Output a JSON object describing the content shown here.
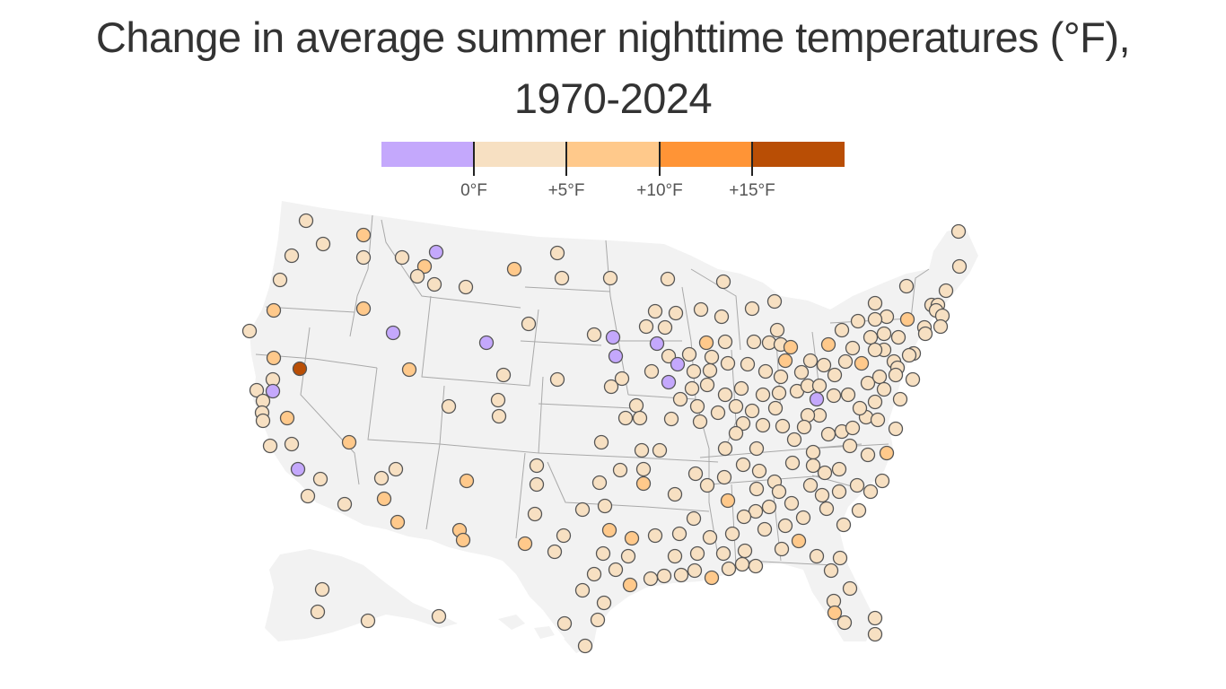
{
  "title": "Change in average summer nighttime temperatures (°F), 1970‑2024",
  "legend": {
    "type": "threshold",
    "colors": [
      "#c4a8fc",
      "#f7e0c2",
      "#ffc98b",
      "#ff9436",
      "#b94e05"
    ],
    "thresholds": [
      0,
      5,
      10,
      15
    ],
    "labels": [
      "0°F",
      "+5°F",
      "+10°F",
      "+15°F"
    ]
  },
  "map": {
    "region": "United States (contiguous, with inset Alaska)",
    "land_color": "#f2f2f2",
    "border_color": "#a0a0a0",
    "marker_stroke": "#555555",
    "marker_count_shown": 300
  },
  "chart_data": {
    "type": "scatter",
    "title": "Change in average summer nighttime temperatures (°F), 1970‑2024",
    "legend_placement": "top-center",
    "grid": false,
    "category_colors": {
      "below 0°F": "#c4a8fc",
      "0 to +5°F": "#f7e0c2",
      "+5 to +10°F": "#ffc98b",
      "+10 to +15°F": "#ff9436",
      "above +15°F": "#b94e05"
    }
  }
}
